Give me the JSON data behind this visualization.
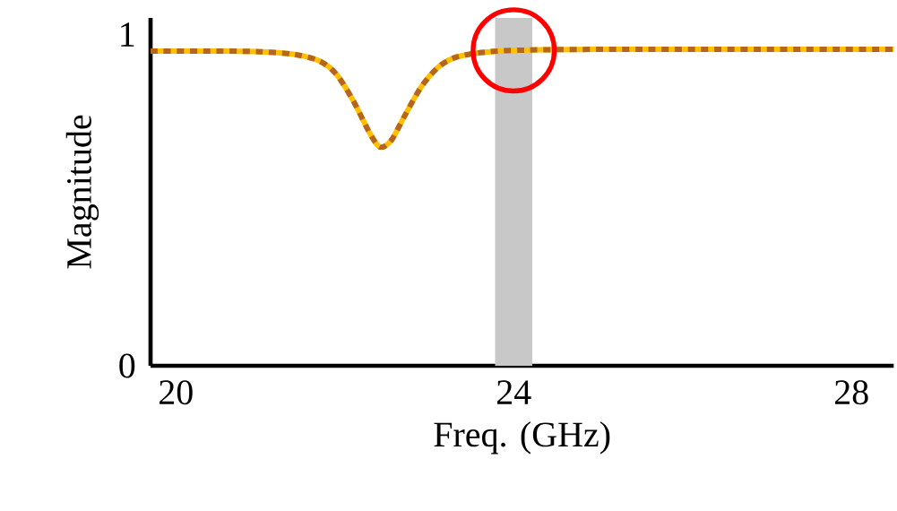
{
  "chart_data": {
    "type": "line",
    "xlabel": "Freq. (GHz)",
    "ylabel": "Magnitude",
    "x": [
      19.7,
      20.5,
      21.0,
      21.4,
      21.7,
      21.9,
      22.1,
      22.3,
      22.42,
      22.55,
      22.7,
      22.9,
      23.1,
      23.3,
      23.6,
      24.0,
      25.0,
      28.5
    ],
    "series": [
      {
        "color": "#ffc000",
        "line_style": "solid",
        "values": [
          0.95,
          0.95,
          0.948,
          0.94,
          0.92,
          0.88,
          0.8,
          0.7,
          0.66,
          0.68,
          0.75,
          0.84,
          0.9,
          0.93,
          0.945,
          0.952,
          0.955,
          0.955
        ]
      },
      {
        "color": "#b5651d",
        "line_style": "dashed",
        "values": [
          0.95,
          0.95,
          0.948,
          0.94,
          0.92,
          0.88,
          0.8,
          0.7,
          0.66,
          0.68,
          0.75,
          0.84,
          0.9,
          0.93,
          0.945,
          0.952,
          0.955,
          0.955
        ]
      }
    ],
    "xlim": [
      19.7,
      28.5
    ],
    "ylim": [
      0,
      1.05
    ],
    "xticks": [
      20,
      24,
      28
    ],
    "yticks": [
      0,
      1
    ],
    "bands": [
      {
        "axis": "x",
        "from": 23.78,
        "to": 24.22,
        "color": "#c8c8c8"
      }
    ],
    "marker": "none"
  }
}
